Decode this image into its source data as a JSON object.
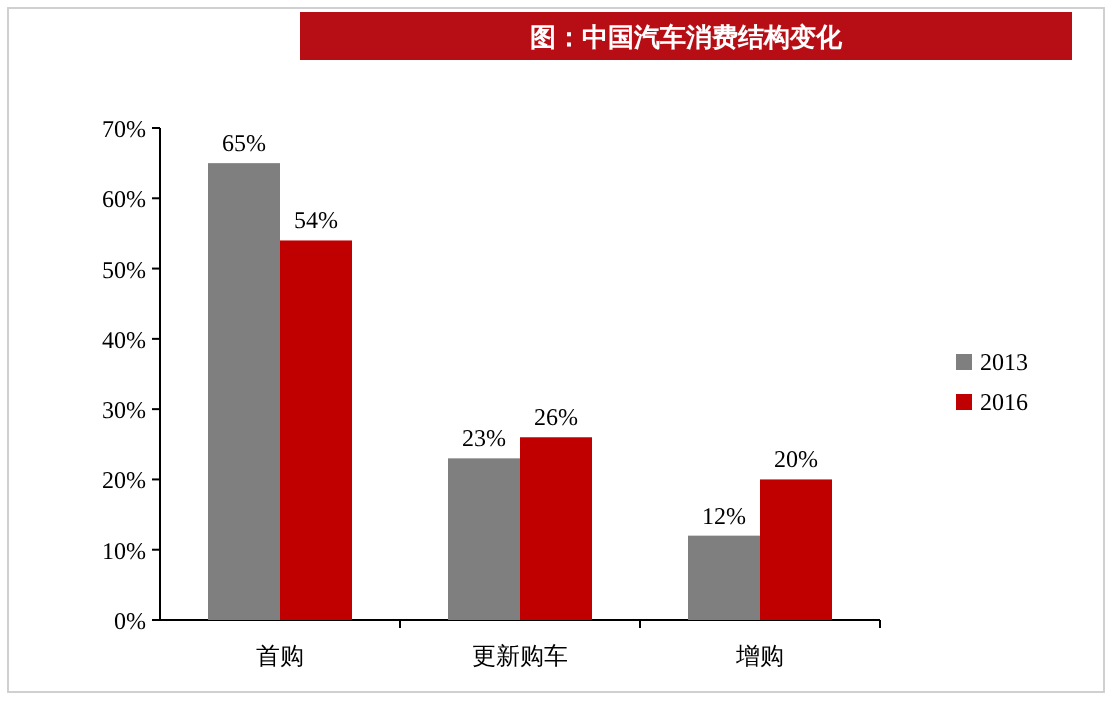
{
  "chart_data": {
    "type": "bar",
    "title": "图：中国汽车消费结构变化",
    "categories": [
      "首购",
      "更新购车",
      "增购"
    ],
    "series": [
      {
        "name": "2013",
        "color": "#7f7f7f",
        "values": [
          65,
          23,
          12
        ],
        "value_labels": [
          "65%",
          "23%",
          "12%"
        ]
      },
      {
        "name": "2016",
        "color": "#c00000",
        "values": [
          54,
          26,
          20
        ],
        "value_labels": [
          "54%",
          "26%",
          "20%"
        ]
      }
    ],
    "ylim": [
      0,
      70
    ],
    "yticks": [
      {
        "value": 0,
        "label": "0%"
      },
      {
        "value": 10,
        "label": "10%"
      },
      {
        "value": 20,
        "label": "20%"
      },
      {
        "value": 30,
        "label": "30%"
      },
      {
        "value": 40,
        "label": "40%"
      },
      {
        "value": 50,
        "label": "50%"
      },
      {
        "value": 60,
        "label": "60%"
      },
      {
        "value": 70,
        "label": "70%"
      }
    ],
    "legend": "right",
    "grid": false
  }
}
